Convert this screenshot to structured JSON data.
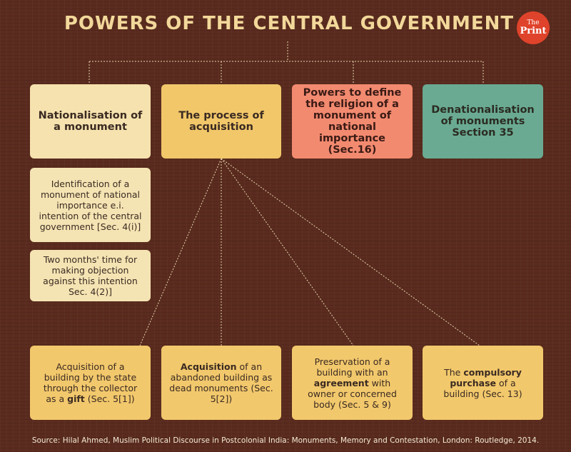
{
  "header": {
    "title": "POWERS OF THE CENTRAL GOVERNMENT",
    "logo": {
      "line1": "The",
      "line2": "Print"
    }
  },
  "colors": {
    "background": "#5a2b1e",
    "title": "#f2d89a",
    "light_box": "#f6e2ae",
    "yellow_box": "#f1c76a",
    "salmon_box": "#f28a70",
    "teal_box": "#6aaa92",
    "logo": "#e0432b"
  },
  "top_boxes": [
    {
      "text": "Nationalisation of a monument"
    },
    {
      "text": "The process of acquisition"
    },
    {
      "text": "Powers to define the religion of a monument of national importance (Sec.16)"
    },
    {
      "text": "Denationalisation of monuments Section 35"
    }
  ],
  "nationalisation_steps": [
    {
      "text": "Identification of a monument of national importance e.i. intention of the central government [Sec. 4(i)]"
    },
    {
      "text": "Two months' time for making objection against this intention Sec. 4(2)]"
    }
  ],
  "acquisition_methods": [
    {
      "pre": "Acquisition of a building by the state through the collector as a ",
      "bold": "gift",
      "post": " (Sec. 5[1])"
    },
    {
      "pre": "",
      "bold": "Acquisition",
      "post": " of an abandoned building as dead monuments (Sec. 5[2])"
    },
    {
      "pre": "Preservation of a building with an ",
      "bold": "agreement",
      "post": " with owner or concerned body (Sec. 5 & 9)"
    },
    {
      "pre": "The ",
      "bold": "compulsory purchase",
      "post": " of a building (Sec. 13)"
    }
  ],
  "source": "Source: Hilal Ahmed, Muslim Political Discourse in Postcolonial India: Monuments, Memory and Contestation, London: Routledge, 2014."
}
